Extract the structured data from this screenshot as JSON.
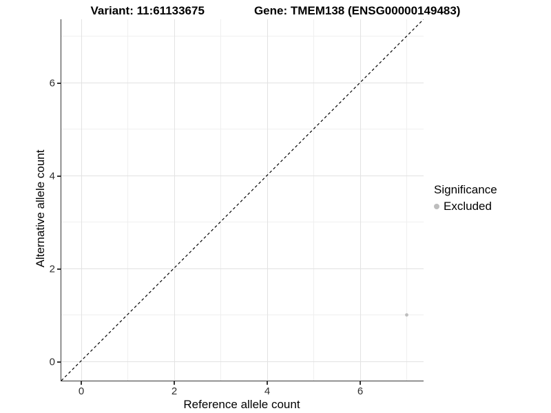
{
  "title": {
    "variant": "Variant: 11:61133675",
    "gene": "Gene: TMEM138 (ENSG00000149483)"
  },
  "axes": {
    "x_label": "Reference allele count",
    "y_label": "Alternative allele count"
  },
  "legend": {
    "title": "Significance",
    "items": [
      {
        "label": "Excluded",
        "color": "#bdbdbd"
      }
    ]
  },
  "colors": {
    "point": "#bdbdbd",
    "grid_major": "#e2e2e2",
    "grid_minor": "#efefef",
    "axis_line": "#343434",
    "identity_line": "#000000",
    "background": "#ffffff"
  },
  "chart_data": {
    "type": "scatter",
    "title": "Variant: 11:61133675   Gene: TMEM138 (ENSG00000149483)",
    "xlabel": "Reference allele count",
    "ylabel": "Alternative allele count",
    "xlim": [
      -0.43,
      7.36
    ],
    "ylim": [
      -0.43,
      7.36
    ],
    "x_ticks": [
      0,
      2,
      4,
      6
    ],
    "y_ticks": [
      0,
      2,
      4,
      6
    ],
    "x_minor_ticks": [
      1,
      3,
      5,
      7
    ],
    "y_minor_ticks": [
      1,
      3,
      5,
      7
    ],
    "grid": true,
    "legend_position": "right",
    "series": [
      {
        "name": "Excluded",
        "color": "#bdbdbd",
        "points": [
          {
            "x": 7,
            "y": 1
          }
        ]
      }
    ],
    "reference_line": {
      "kind": "identity (y = x)",
      "style": "dashed",
      "color": "#000000",
      "from": [
        -0.43,
        -0.43
      ],
      "to": [
        7.36,
        7.36
      ]
    }
  }
}
